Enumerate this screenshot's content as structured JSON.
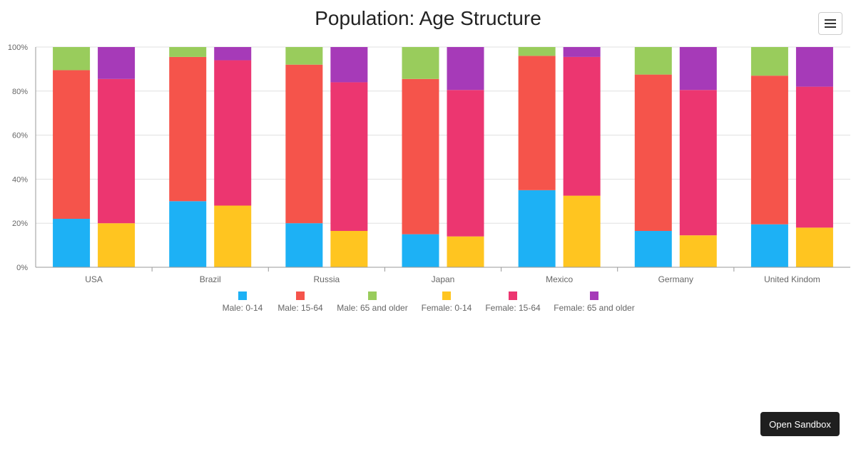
{
  "chart_data": {
    "type": "bar",
    "stacked": true,
    "percent": true,
    "title": "Population: Age Structure",
    "categories": [
      "USA",
      "Brazil",
      "Russia",
      "Japan",
      "Mexico",
      "Germany",
      "United Kindom"
    ],
    "yticks": [
      "0%",
      "20%",
      "40%",
      "60%",
      "80%",
      "100%"
    ],
    "ylim": [
      0,
      100
    ],
    "grid": true,
    "legend_position": "bottom",
    "groups": [
      {
        "name": "Male",
        "series": [
          {
            "name": "Male: 0-14",
            "color": "#1db1f5",
            "values": [
              22,
              30,
              20,
              15,
              35,
              16.5,
              19.5
            ]
          },
          {
            "name": "Male: 15-64",
            "color": "#f5544b",
            "values": [
              67.5,
              65.5,
              72,
              70.5,
              61,
              71,
              67.5
            ]
          },
          {
            "name": "Male: 65 and older",
            "color": "#99cc5c",
            "values": [
              10.5,
              4.5,
              8,
              14.5,
              4,
              12.5,
              13
            ]
          }
        ]
      },
      {
        "name": "Female",
        "series": [
          {
            "name": "Female: 0-14",
            "color": "#ffc520",
            "values": [
              20,
              28,
              16.5,
              14,
              32.5,
              14.5,
              18
            ]
          },
          {
            "name": "Female: 15-64",
            "color": "#ec3670",
            "values": [
              65.5,
              66,
              67.5,
              66.5,
              63,
              66,
              64
            ]
          },
          {
            "name": "Female: 65 and older",
            "color": "#a63ab8",
            "values": [
              14.5,
              6,
              16,
              19.5,
              4.5,
              19.5,
              18
            ]
          }
        ]
      }
    ]
  },
  "toolbar": {
    "menu_icon": "hamburger-icon",
    "sandbox_label": "Open Sandbox"
  }
}
